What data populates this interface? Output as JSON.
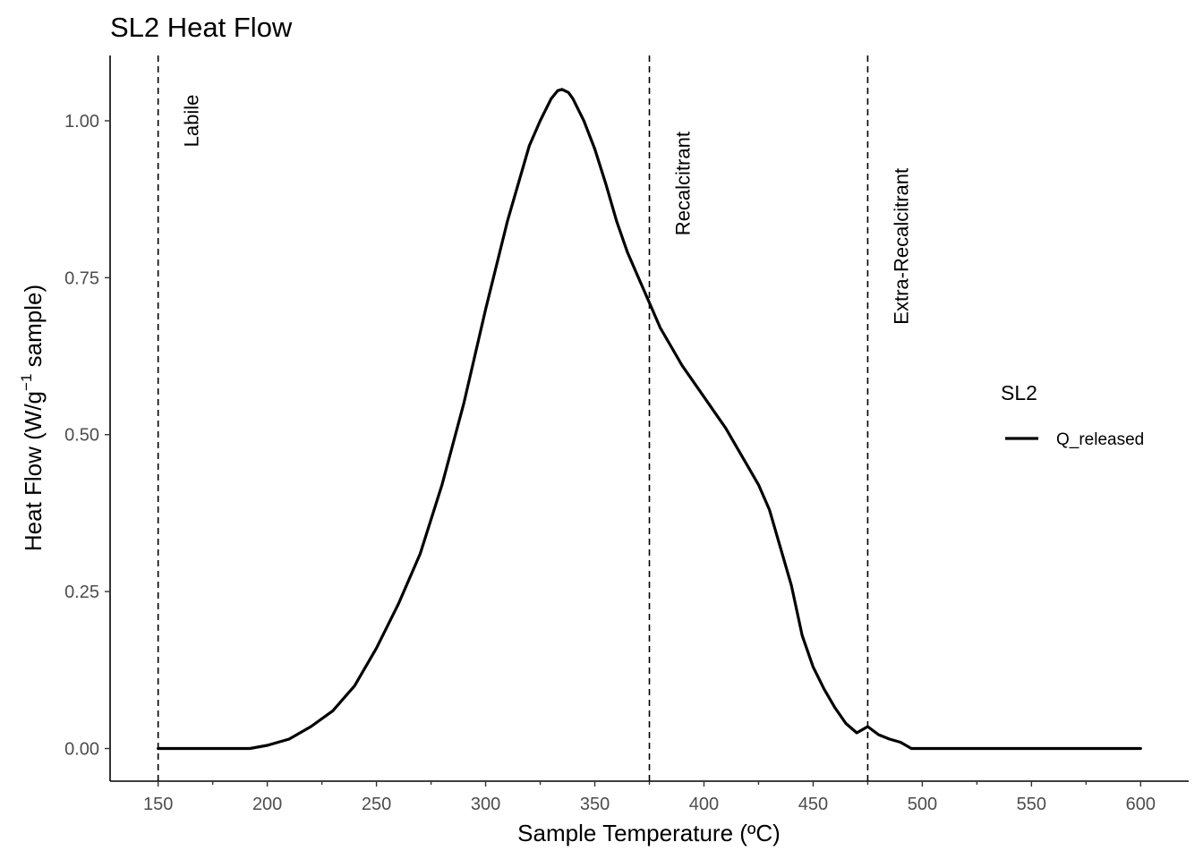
{
  "chart_data": {
    "type": "line",
    "title": "SL2 Heat Flow",
    "xlabel": "Sample Temperature (ºC)",
    "ylabel_main": "Heat Flow (W/g",
    "ylabel_sup": "−1",
    "ylabel_tail": " sample)",
    "xlim": [
      128,
      622
    ],
    "ylim": [
      -0.052,
      1.104
    ],
    "xticks": [
      150,
      200,
      250,
      300,
      350,
      400,
      450,
      500,
      550,
      600
    ],
    "xtick_labels": [
      "150",
      "200",
      "250",
      "300",
      "350",
      "400",
      "450",
      "500",
      "550",
      "600"
    ],
    "yticks": [
      0.0,
      0.25,
      0.5,
      0.75,
      1.0
    ],
    "ytick_labels": [
      "0.00",
      "0.25",
      "0.50",
      "0.75",
      "1.00"
    ],
    "grid": false,
    "legend": {
      "title": "SL2",
      "position": "right"
    },
    "vlines": [
      {
        "x": 150,
        "label": "Labile",
        "label_y": 1.0
      },
      {
        "x": 375,
        "label": "Recalcitrant",
        "label_y": 0.9
      },
      {
        "x": 475,
        "label": "Extra-Recalcitrant",
        "label_y": 0.8
      }
    ],
    "series": [
      {
        "name": "Q_released",
        "x": [
          150,
          190,
          192,
          200,
          210,
          220,
          230,
          240,
          250,
          260,
          270,
          280,
          290,
          300,
          310,
          320,
          325,
          330,
          333,
          335,
          338,
          340,
          345,
          350,
          355,
          360,
          365,
          370,
          375,
          380,
          385,
          390,
          395,
          400,
          405,
          410,
          415,
          420,
          425,
          430,
          435,
          440,
          445,
          450,
          455,
          460,
          465,
          470,
          475,
          480,
          485,
          490,
          495,
          600
        ],
        "y": [
          0.0,
          0.0,
          0.0,
          0.005,
          0.015,
          0.035,
          0.06,
          0.1,
          0.16,
          0.23,
          0.31,
          0.42,
          0.55,
          0.7,
          0.84,
          0.96,
          1.0,
          1.035,
          1.048,
          1.05,
          1.045,
          1.035,
          1.0,
          0.955,
          0.9,
          0.84,
          0.79,
          0.75,
          0.71,
          0.67,
          0.64,
          0.61,
          0.585,
          0.56,
          0.535,
          0.51,
          0.48,
          0.45,
          0.42,
          0.38,
          0.32,
          0.26,
          0.18,
          0.13,
          0.095,
          0.065,
          0.04,
          0.025,
          0.035,
          0.022,
          0.015,
          0.01,
          0.0,
          0.0
        ]
      }
    ]
  }
}
